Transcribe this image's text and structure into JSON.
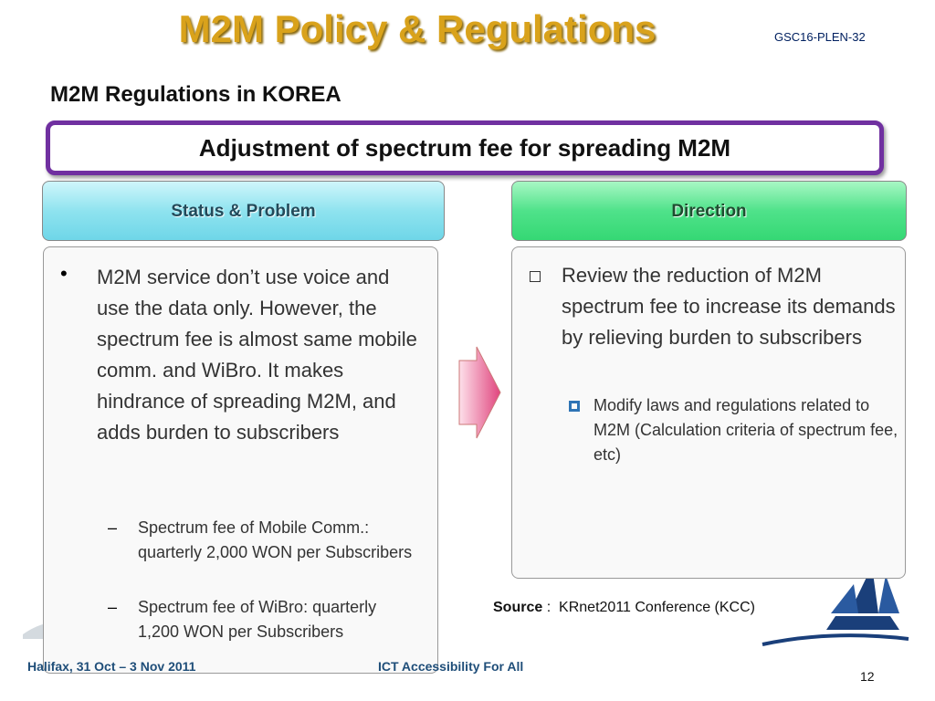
{
  "header": {
    "title": "M2M Policy & Regulations",
    "doc_id": "GSC16-PLEN-32",
    "subtitle": "M2M Regulations in KOREA"
  },
  "banner": "Adjustment of spectrum fee for spreading M2M",
  "left": {
    "heading": "Status & Problem",
    "bullet": "M2M service don’t use voice and use the data only. However, the spectrum fee is almost same mobile comm. and WiBro. It makes hindrance of spreading M2M, and adds burden to subscribers",
    "sub_bullets": [
      "Spectrum fee of Mobile Comm.: quarterly 2,000 WON per Subscribers",
      "Spectrum fee of WiBro: quarterly 1,200 WON per Subscribers"
    ]
  },
  "right": {
    "heading": "Direction",
    "bullet": "Review the reduction of M2M spectrum fee to increase its demands by relieving burden to subscribers",
    "sub_bullets": [
      "Modify laws and regulations related to M2M (Calculation criteria of spectrum fee, etc)"
    ]
  },
  "source": {
    "label": "Source",
    "separator": ":",
    "text": "KRnet2011 Conference (KCC)"
  },
  "footer": {
    "location": "Halifax, 31 Oct – 3 Nov 2011",
    "motto": "ICT Accessibility For All",
    "page": "12"
  }
}
